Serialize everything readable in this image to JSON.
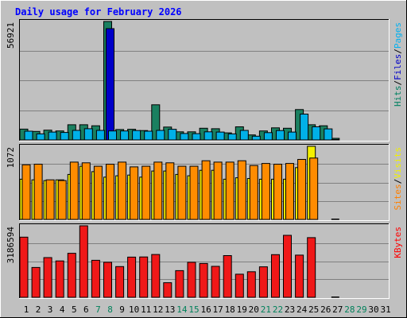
{
  "chart_data": {
    "type": "bar",
    "title": "Daily usage for February 2026",
    "categories": [
      "1",
      "2",
      "3",
      "4",
      "5",
      "6",
      "7",
      "8",
      "9",
      "10",
      "11",
      "12",
      "13",
      "14",
      "15",
      "16",
      "17",
      "18",
      "19",
      "20",
      "21",
      "22",
      "23",
      "24",
      "25",
      "26",
      "27",
      "28",
      "29",
      "30",
      "31"
    ],
    "weekend_days": [
      "7",
      "8",
      "14",
      "15",
      "21",
      "22",
      "28",
      "29"
    ],
    "panels": [
      {
        "name": "pages-files-hits",
        "y_max_label": "56921",
        "y_max": 56921,
        "legend": [
          {
            "text": "Pages",
            "color": "#00B0F0"
          },
          {
            "text": "Files",
            "color": "#0000C8"
          },
          {
            "text": "Hits",
            "color": "#008060"
          }
        ],
        "series": [
          {
            "name": "Hits",
            "color": "#1A8060",
            "offset": 0,
            "values": [
              5200,
              4100,
              4700,
              4300,
              7300,
              7300,
              6800,
              56921,
              5000,
              5100,
              4500,
              16900,
              6200,
              3900,
              3900,
              5600,
              5400,
              3400,
              6300,
              2400,
              4300,
              5800,
              5600,
              14600,
              7300,
              6800,
              500,
              0,
              0,
              0,
              0
            ]
          },
          {
            "name": "Files",
            "color": "#0000C8",
            "offset": 1,
            "values": [
              0,
              0,
              0,
              0,
              0,
              0,
              0,
              53500,
              0,
              0,
              0,
              0,
              0,
              0,
              0,
              0,
              0,
              0,
              0,
              0,
              0,
              0,
              0,
              0,
              0,
              0,
              0,
              0,
              0,
              0,
              0
            ]
          },
          {
            "name": "Pages",
            "color": "#00B0E8",
            "offset": 2,
            "values": [
              4200,
              2900,
              3800,
              3600,
              4600,
              5400,
              4600,
              4300,
              4300,
              4500,
              4200,
              4600,
              5100,
              3100,
              3000,
              3900,
              3800,
              2900,
              4600,
              1800,
              3500,
              4500,
              3800,
              12400,
              6300,
              5300,
              0,
              0,
              0,
              0,
              0
            ]
          }
        ]
      },
      {
        "name": "visits-sites",
        "y_max_label": "1072",
        "y_max": 1072,
        "legend": [
          {
            "text": "Visits",
            "color": "#F0F000"
          },
          {
            "text": "Sites",
            "color": "#FF8000"
          }
        ],
        "series": [
          {
            "name": "Visits",
            "color": "#F4F000",
            "offset": 0,
            "values": [
              590,
              580,
              570,
              580,
              660,
              780,
              700,
              620,
              640,
              650,
              620,
              710,
              710,
              660,
              640,
              720,
              720,
              590,
              610,
              600,
              590,
              590,
              590,
              760,
              1072,
              0,
              0,
              0,
              0,
              0,
              0
            ]
          },
          {
            "name": "Sites",
            "color": "#FF8C00",
            "offset": 1,
            "values": [
              800,
              810,
              580,
              570,
              840,
              830,
              780,
              810,
              840,
              770,
              780,
              840,
              830,
              780,
              780,
              860,
              840,
              840,
              860,
              790,
              820,
              810,
              820,
              880,
              900,
              0,
              0,
              0,
              0,
              0,
              0
            ]
          }
        ]
      },
      {
        "name": "kbytes",
        "y_max_label": "3186594",
        "y_max": 3186594,
        "legend": [
          {
            "text": "KBytes",
            "color": "#FF0000"
          }
        ],
        "series": [
          {
            "name": "KBytes",
            "color": "#F01818",
            "offset": 0,
            "values": [
              2680000,
              1330000,
              1770000,
              1620000,
              1960000,
              3186594,
              1650000,
              1560000,
              1370000,
              1790000,
              1800000,
              1910000,
              650000,
              1190000,
              1560000,
              1510000,
              1380000,
              1860000,
              1030000,
              1140000,
              1360000,
              1900000,
              2760000,
              1880000,
              2660000,
              0,
              0,
              0,
              0,
              0,
              0
            ]
          }
        ]
      }
    ]
  }
}
